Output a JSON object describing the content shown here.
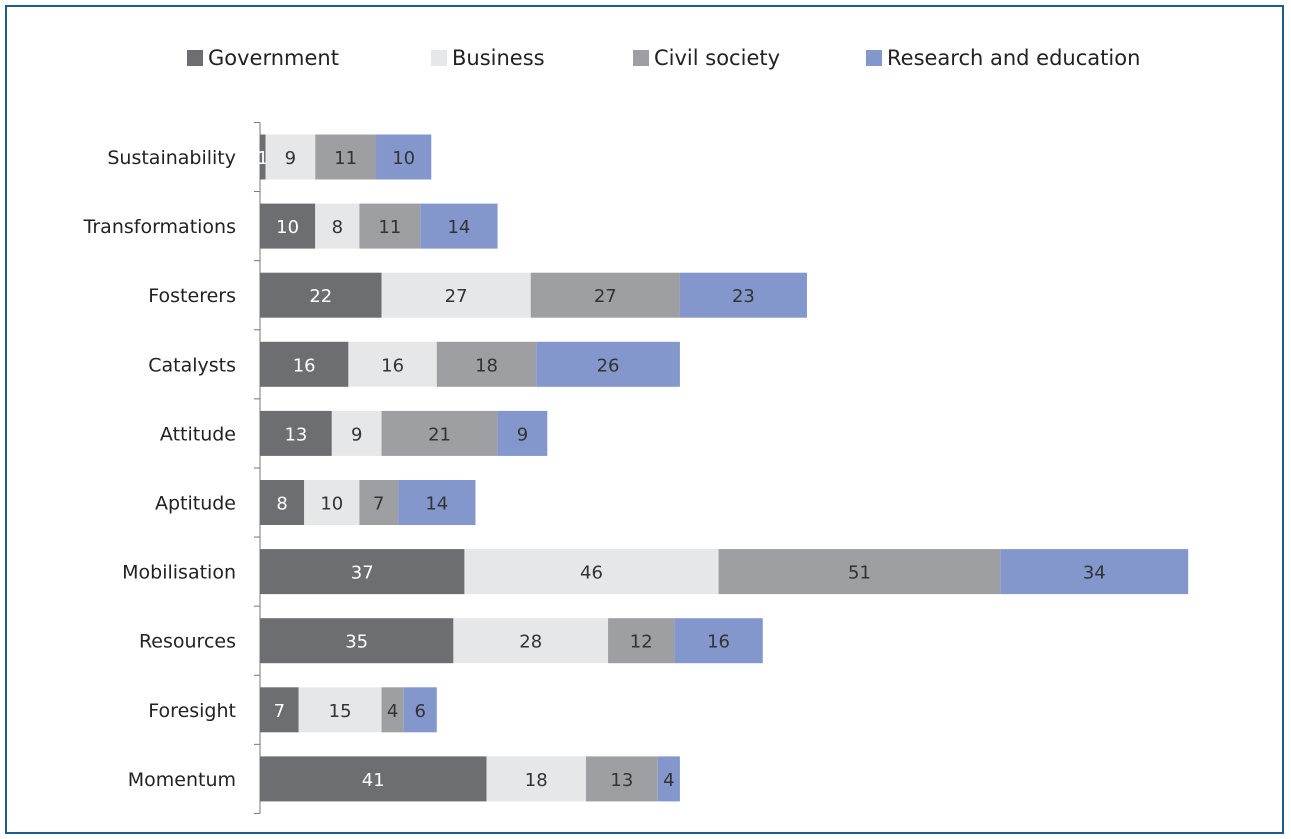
{
  "chart_data": {
    "type": "bar",
    "orientation": "horizontal",
    "stacked": true,
    "categories": [
      "Sustainability",
      "Transformations",
      "Fosterers",
      "Catalysts",
      "Attitude",
      "Aptitude",
      "Mobilisation",
      "Resources",
      "Foresight",
      "Momentum"
    ],
    "series": [
      {
        "name": "Government",
        "color": "#6d6e71",
        "values": [
          1,
          10,
          22,
          16,
          13,
          8,
          37,
          35,
          7,
          41
        ]
      },
      {
        "name": "Business",
        "color": "#e6e7e8",
        "values": [
          9,
          8,
          27,
          16,
          9,
          10,
          46,
          28,
          15,
          18
        ]
      },
      {
        "name": "Civil society",
        "color": "#9d9fa2",
        "values": [
          11,
          11,
          27,
          18,
          21,
          7,
          51,
          12,
          4,
          13
        ]
      },
      {
        "name": "Research and education",
        "color": "#8497cc",
        "values": [
          10,
          14,
          23,
          26,
          9,
          14,
          34,
          16,
          6,
          4
        ]
      }
    ],
    "title": "",
    "xlabel": "",
    "ylabel": "",
    "legend_position": "top",
    "grid": false
  }
}
